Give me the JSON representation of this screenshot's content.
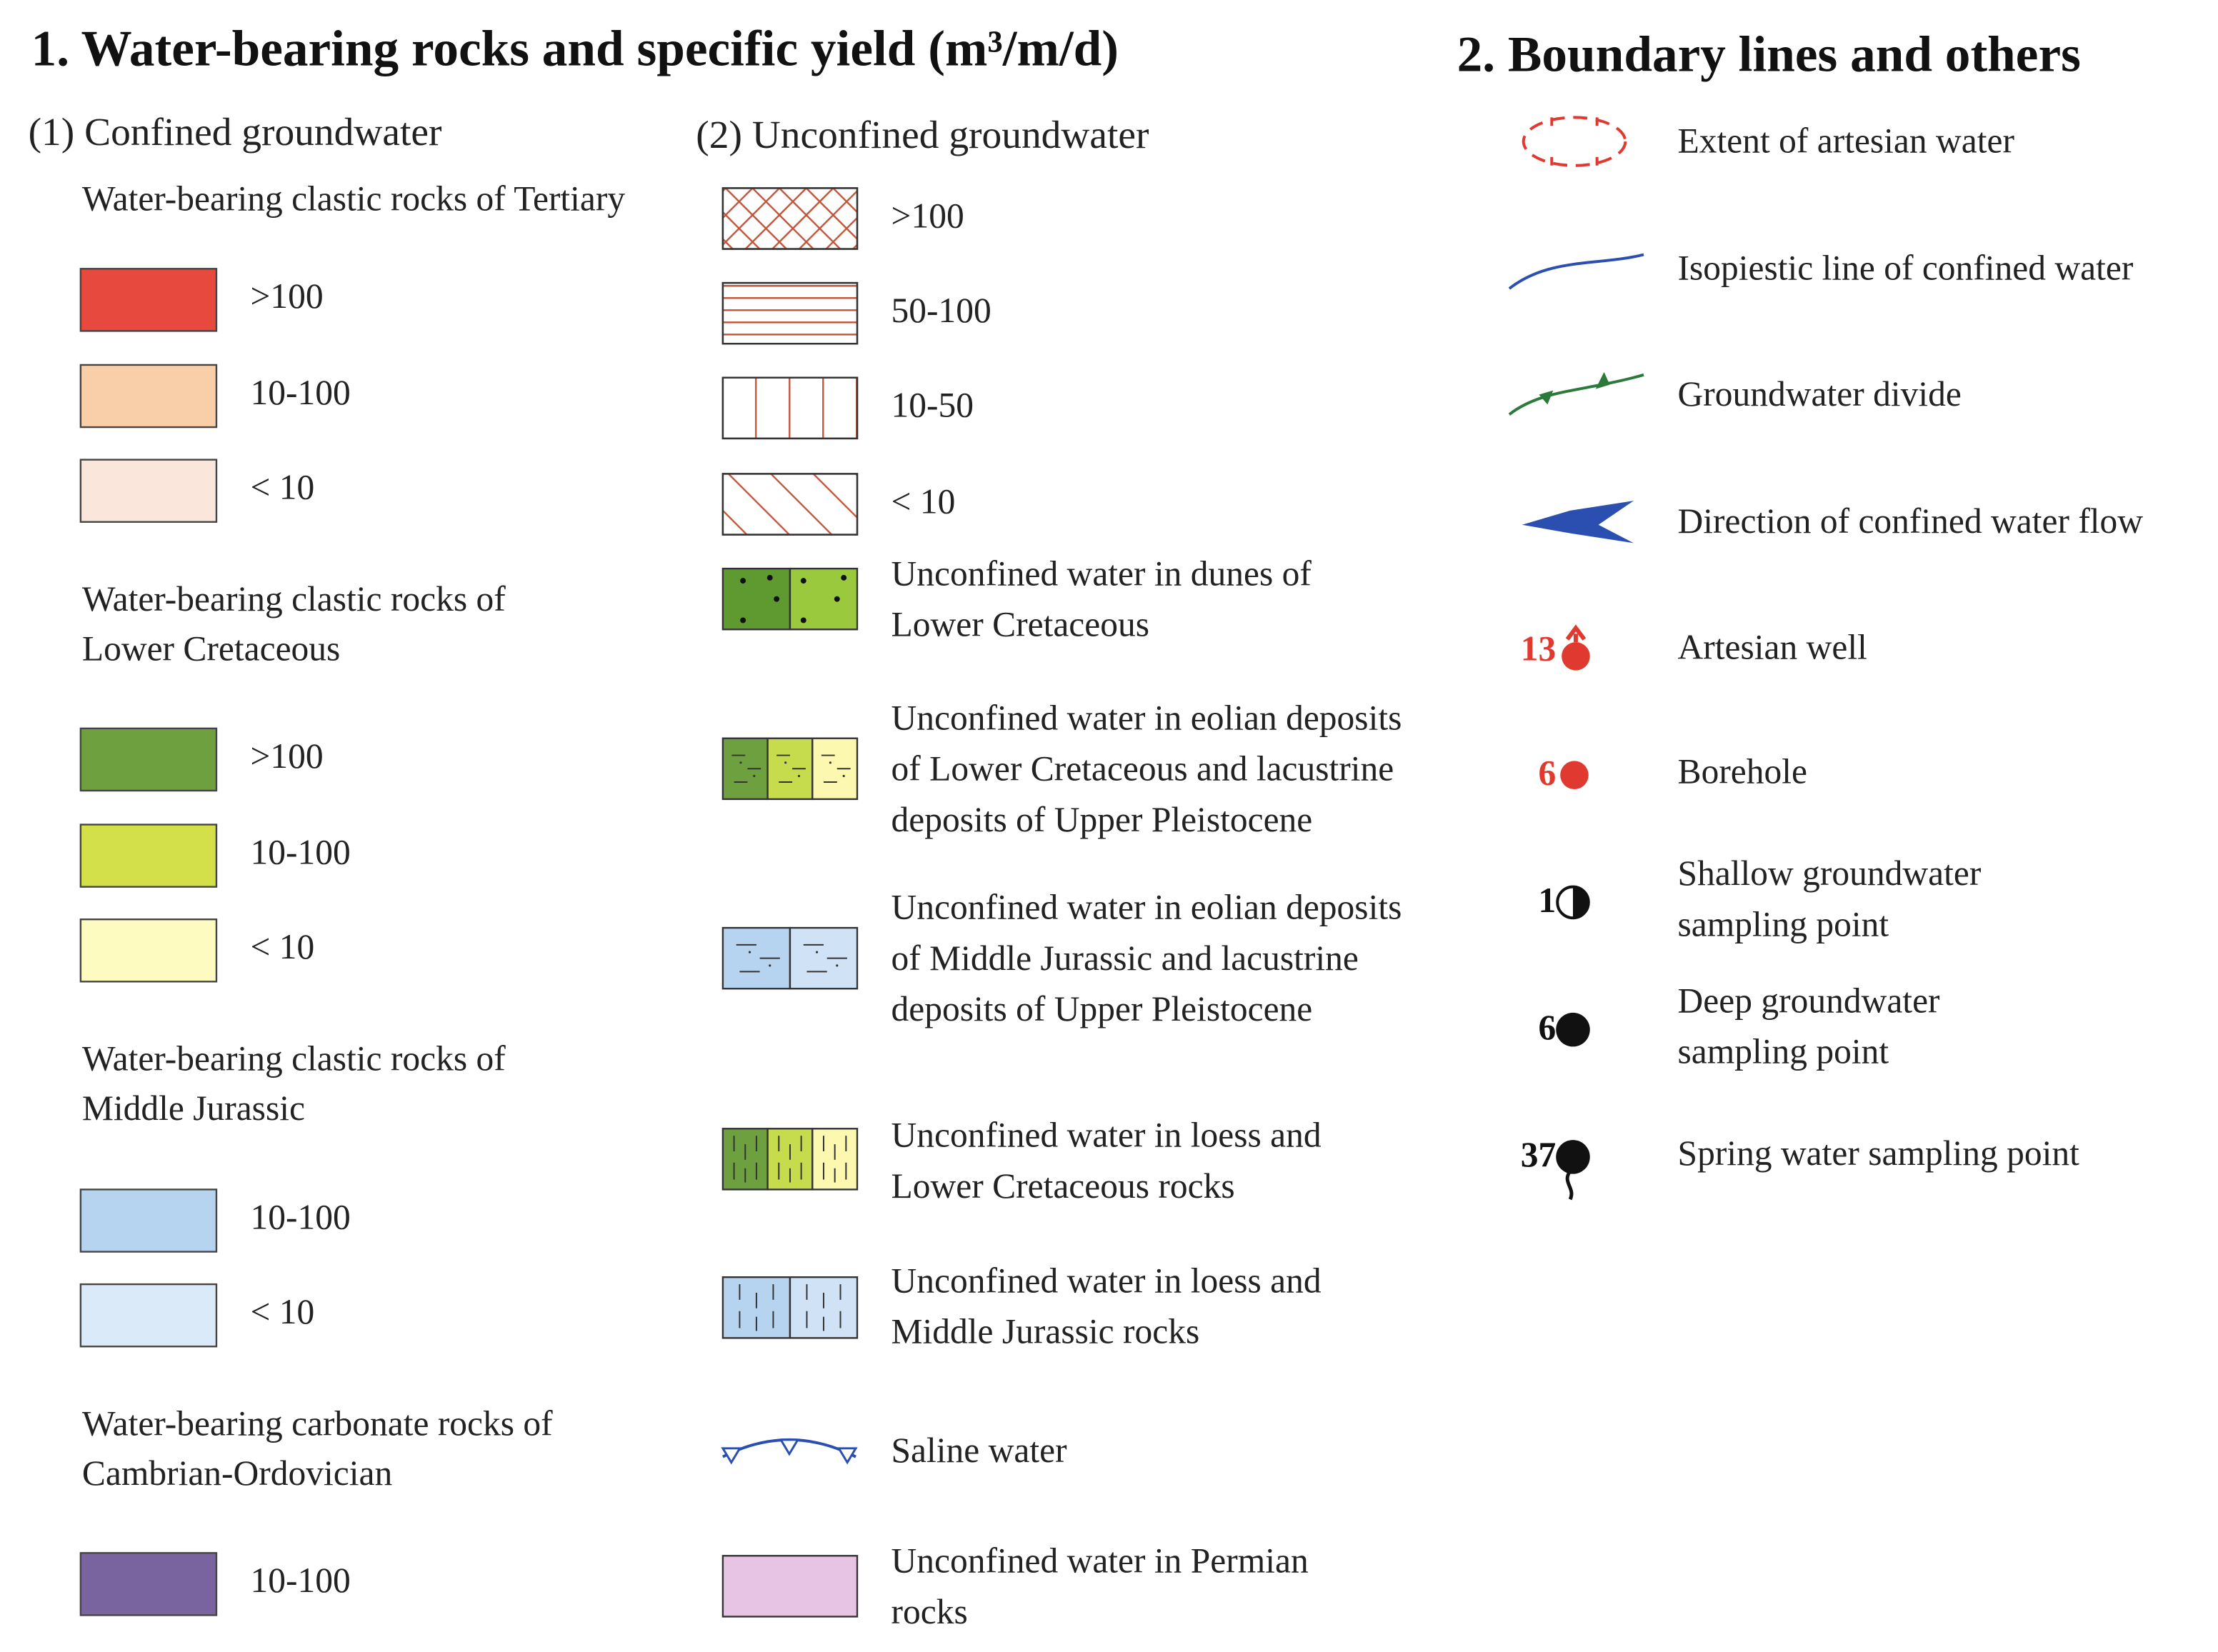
{
  "section1": {
    "title": "1. Water-bearing rocks and specific yield (m³/m/d)",
    "confined": {
      "heading": "(1) Confined groundwater",
      "groups": [
        {
          "label": [
            "Water-bearing clastic rocks of Tertiary"
          ],
          "items": [
            ">100",
            "10-100",
            "< 10"
          ]
        },
        {
          "label": [
            "Water-bearing clastic rocks of",
            "Lower Cretaceous"
          ],
          "items": [
            ">100",
            "10-100",
            "< 10"
          ]
        },
        {
          "label": [
            "Water-bearing clastic rocks of",
            "Middle Jurassic"
          ],
          "items": [
            "10-100",
            "< 10"
          ]
        },
        {
          "label": [
            "Water-bearing carbonate rocks of",
            "Cambrian-Ordovician"
          ],
          "items": [
            "10-100"
          ]
        }
      ]
    },
    "unconfined": {
      "heading": "(2) Unconfined groundwater",
      "items": [
        [
          ">100"
        ],
        [
          "50-100"
        ],
        [
          "10-50"
        ],
        [
          "< 10"
        ],
        [
          "Unconfined water in dunes of",
          "Lower Cretaceous"
        ],
        [
          "Unconfined water in eolian deposits",
          "of Lower Cretaceous and lacustrine",
          "deposits of Upper Pleistocene"
        ],
        [
          "Unconfined water in eolian deposits",
          "of Middle Jurassic and lacustrine",
          "deposits of Upper Pleistocene"
        ],
        [
          "Unconfined water in loess and",
          "Lower Cretaceous rocks"
        ],
        [
          "Unconfined water in loess and",
          "Middle Jurassic rocks"
        ],
        [
          "Saline water"
        ],
        [
          "Unconfined water in Permian",
          "rocks"
        ]
      ]
    }
  },
  "section2": {
    "title": "2. Boundary lines and others",
    "items": [
      {
        "label": [
          "Extent of artesian water"
        ]
      },
      {
        "label": [
          "Isopiestic line of confined water"
        ]
      },
      {
        "label": [
          "Groundwater divide"
        ]
      },
      {
        "label": [
          "Direction of confined water flow"
        ]
      },
      {
        "number": "13",
        "label": [
          "Artesian well"
        ]
      },
      {
        "number": "6",
        "label": [
          "Borehole"
        ]
      },
      {
        "number": "1",
        "label": [
          "Shallow groundwater",
          "sampling point"
        ]
      },
      {
        "number": "6",
        "label": [
          "Deep groundwater",
          "sampling point"
        ]
      },
      {
        "number": "37",
        "label": [
          "Spring water sampling point"
        ]
      }
    ]
  }
}
